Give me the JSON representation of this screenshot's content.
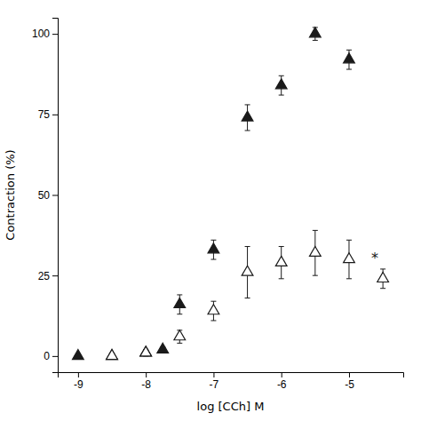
{
  "chart_data": {
    "type": "scatter",
    "xlabel": "log [CCh] M",
    "ylabel": "Contraction (%)",
    "xlim": [
      -9.3,
      -4.2
    ],
    "ylim": [
      -5,
      105
    ],
    "xticks": [
      -9,
      -8,
      -7,
      -6,
      -5
    ],
    "yticks": [
      0,
      25,
      50,
      75,
      100
    ],
    "color": "#1a1a1a",
    "series": [
      {
        "marker": "triangle-up",
        "x": [
          -9,
          -8.5,
          -8,
          -7.75,
          -7.5,
          -7,
          -6.5,
          -6,
          -5.5,
          -5
        ],
        "values": [
          0,
          0,
          1,
          2,
          16,
          33,
          74,
          84,
          100,
          92
        ],
        "errors": [
          0.4,
          0.4,
          0.5,
          0.8,
          3,
          3,
          4,
          3,
          2,
          3
        ]
      },
      {
        "marker": "triangle-up-open",
        "x": [
          -8.5,
          -8,
          -7.5,
          -7,
          -6.5,
          -6,
          -5.5,
          -5,
          -4.5
        ],
        "values": [
          0,
          1,
          6,
          14,
          26,
          29,
          32,
          30,
          24
        ],
        "errors": [
          0.5,
          1,
          2,
          3,
          8,
          5,
          7,
          6,
          3
        ]
      }
    ],
    "annotations": [
      {
        "text": "*",
        "x": -4.62,
        "y": 30.5
      }
    ]
  }
}
